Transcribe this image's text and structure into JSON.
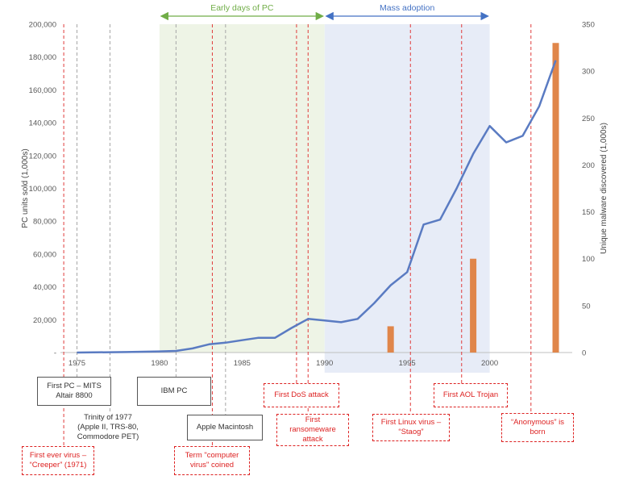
{
  "chart_data": {
    "type": "line",
    "title": "",
    "xlabel": "",
    "ylabel": "PC units sold (1,000s)",
    "ylabel_right": "Unique malware discovered (1,000s)",
    "xlim": [
      1974,
      2005
    ],
    "ylim": [
      0,
      200000
    ],
    "ylim_right": [
      0,
      350
    ],
    "x_ticks": [
      1975,
      1980,
      1985,
      1990,
      1995,
      2000
    ],
    "y_ticks": [
      0,
      20000,
      40000,
      60000,
      80000,
      100000,
      120000,
      140000,
      160000,
      180000,
      200000
    ],
    "y_tick_labels": [
      "-",
      "20,000",
      "40,000",
      "60,000",
      "80,000",
      "100,000",
      "120,000",
      "140,000",
      "160,000",
      "180,000",
      "200,000"
    ],
    "y_right_ticks": [
      0,
      50,
      100,
      150,
      200,
      250,
      300,
      350
    ],
    "grid": false,
    "legend": "none",
    "series": [
      {
        "kind": "line",
        "axis": "left",
        "color": "#5a7bc2",
        "x": [
          1975,
          1976,
          1977,
          1978,
          1979,
          1980,
          1981,
          1982,
          1983,
          1984,
          1985,
          1986,
          1987,
          1988,
          1989,
          1990,
          1991,
          1992,
          1993,
          1994,
          1995,
          1996,
          1997,
          1998,
          1999,
          2000,
          2001,
          2002,
          2003,
          2004
        ],
        "y": [
          0,
          100,
          200,
          300,
          500,
          700,
          1000,
          2500,
          5000,
          6000,
          7500,
          9000,
          9000,
          15000,
          20500,
          19500,
          18500,
          20500,
          30000,
          41000,
          49000,
          78000,
          81000,
          100000,
          121000,
          138000,
          128000,
          132000,
          150000,
          178000
        ]
      },
      {
        "kind": "bar",
        "axis": "right",
        "color": "#e0864a",
        "x": [
          1994,
          1999,
          2004
        ],
        "y": [
          28,
          100,
          330
        ]
      }
    ],
    "periods": [
      {
        "label": "Early days of PC",
        "start": 1980,
        "end": 1990,
        "fill": "#eef4e6",
        "arrow_color": "#70ad47"
      },
      {
        "label": "Mass adoption",
        "start": 1990,
        "end": 2000,
        "fill": "#e7ecf7",
        "arrow_color": "#4472c4"
      }
    ],
    "annotations": [
      {
        "text": "First ever virus –\n“Creeper” (1971)",
        "year": 1974.2,
        "style": "red"
      },
      {
        "text": "First PC – MITS\nAltair 8800",
        "year": 1975,
        "style": "gray"
      },
      {
        "text": "Trinity of 1977\n(Apple II, TRS-80,\nCommodore PET)",
        "year": 1977,
        "style": "plain"
      },
      {
        "text": "IBM PC",
        "year": 1981,
        "style": "gray"
      },
      {
        "text": "Term \"computer\nvirus\" coined",
        "year": 1983.2,
        "style": "red"
      },
      {
        "text": "Apple Macintosh",
        "year": 1984,
        "style": "gray"
      },
      {
        "text": "First DoS attack",
        "year": 1988.3,
        "style": "red"
      },
      {
        "text": "First\nransomeware\nattack",
        "year": 1989,
        "style": "red"
      },
      {
        "text": "First Linux virus –\n“Staog”",
        "year": 1995.2,
        "style": "red"
      },
      {
        "text": "First AOL Trojan",
        "year": 1998.3,
        "style": "red"
      },
      {
        "text": "“Anonymous” is\nborn",
        "year": 2002.5,
        "style": "red"
      }
    ]
  }
}
